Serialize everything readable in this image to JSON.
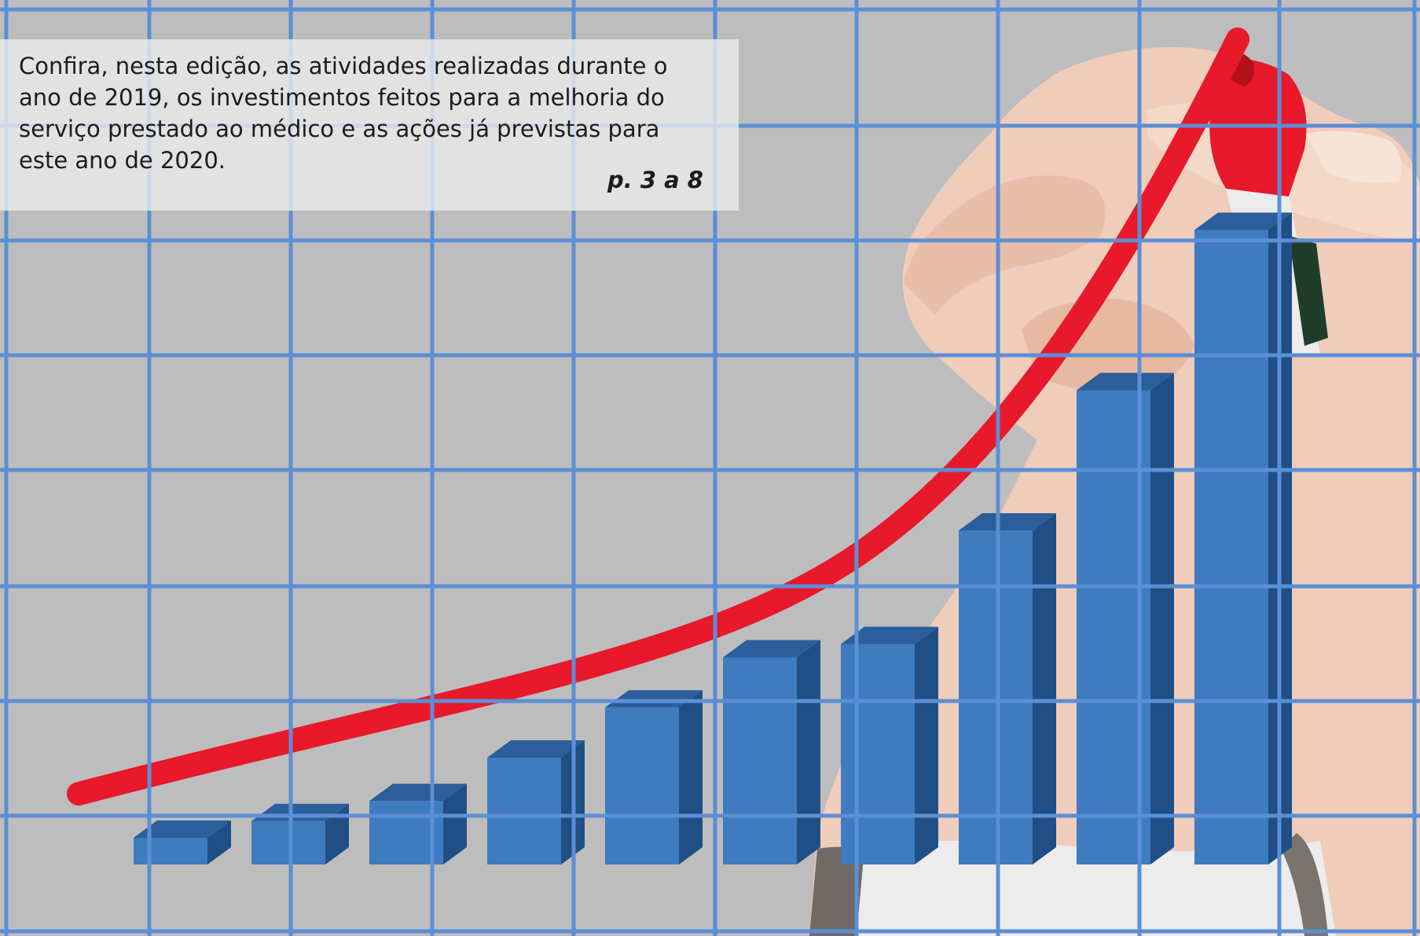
{
  "caption": {
    "text": "Confira, nesta edição, as atividades realizadas durante o ano de 2019, os investimentos feitos para a melhoria do serviço prestado ao médico e as ações já previstas para este ano de 2020.",
    "page_ref": "p. 3 a 8"
  },
  "illustration": {
    "bar_levels": [
      0.04,
      0.065,
      0.095,
      0.16,
      0.235,
      0.31,
      0.33,
      0.5,
      0.71,
      0.95
    ],
    "colors": {
      "background": "#bdbdbd",
      "grid": "#5b8fd6",
      "bar_front": "#3f7bbf",
      "bar_side": "#1f4f85",
      "bar_top": "#2b5e9a",
      "trend_line": "#e8192a",
      "marker_body": "#e8192a",
      "hand_skin": "#f3d3c0"
    },
    "icons": [
      "hand-holding-marker",
      "red-marker",
      "growth-trend-line"
    ]
  }
}
